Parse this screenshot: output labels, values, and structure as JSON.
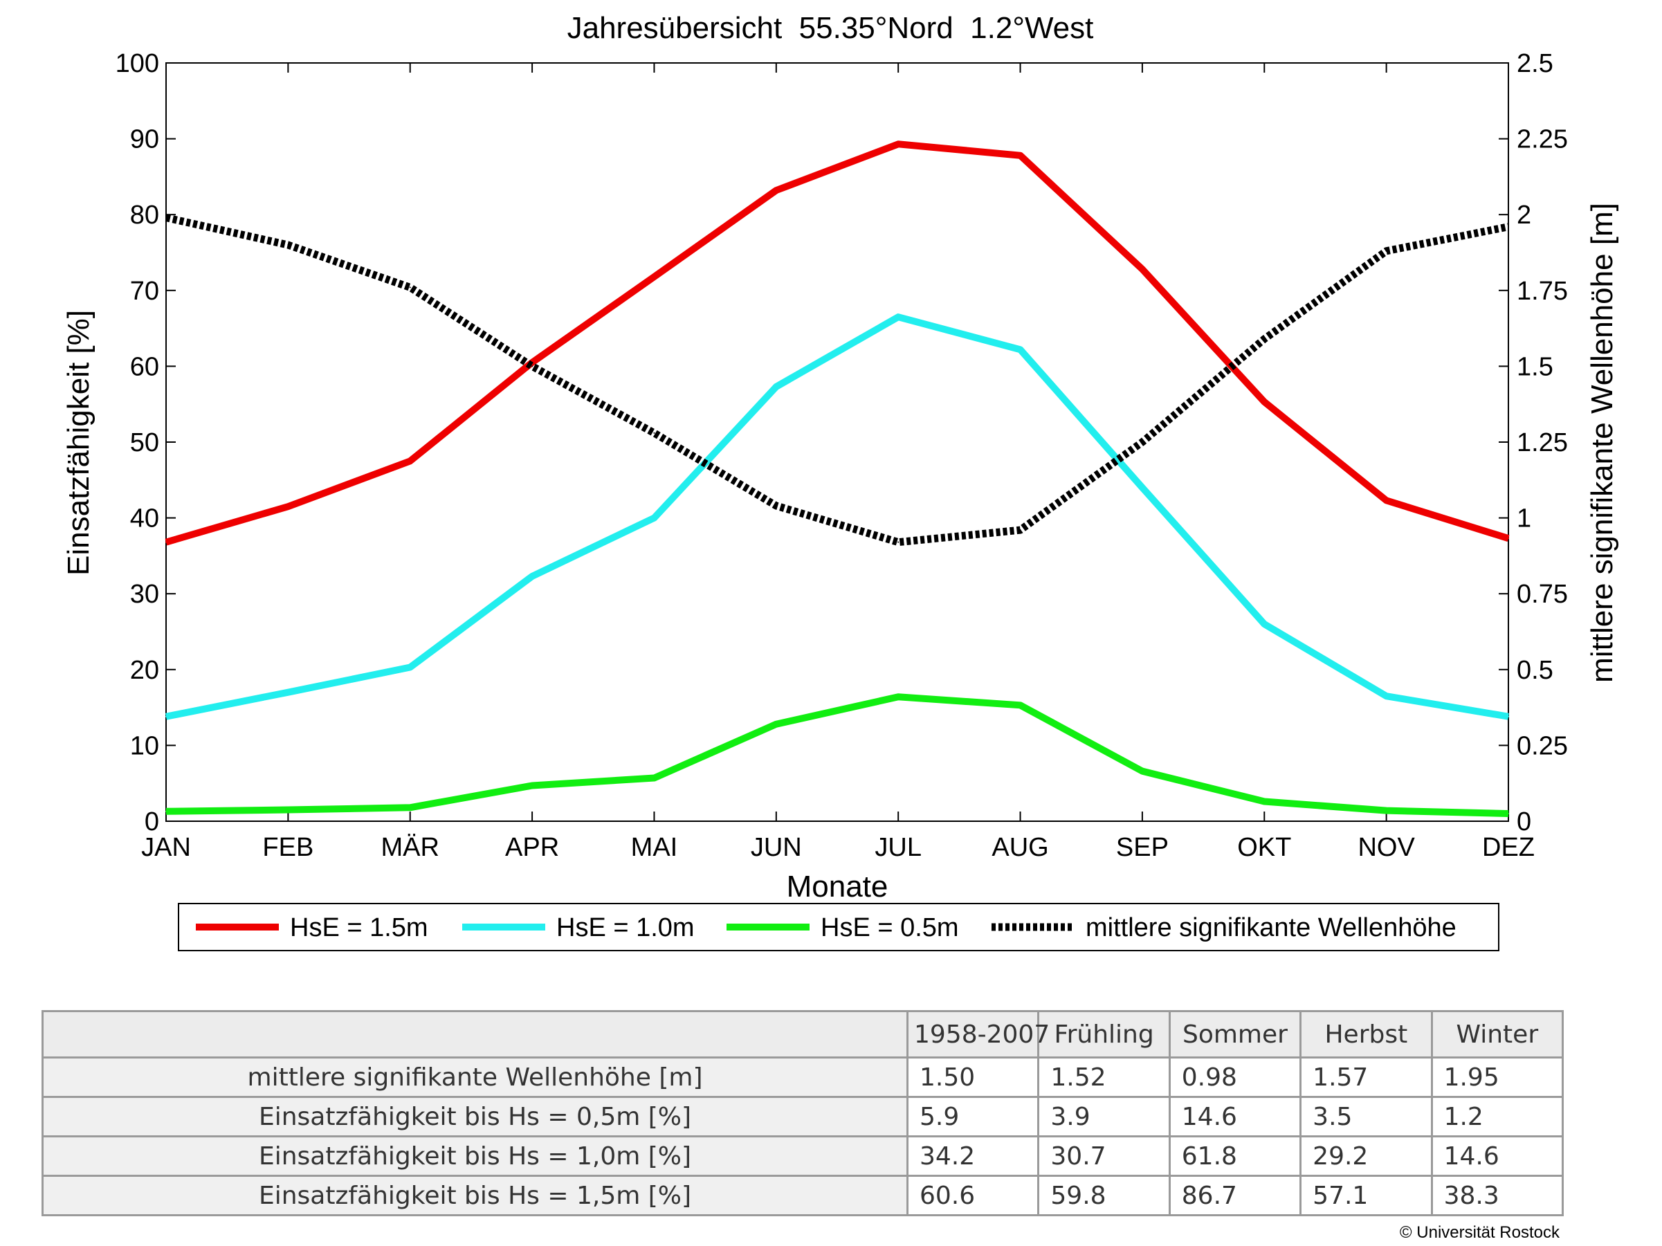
{
  "chart_data": {
    "type": "line",
    "title": "Jahresübersicht  55.35°Nord  1.2°West",
    "xlabel": "Monate",
    "ylabel_left": "Einsatzfähigkeit [%]",
    "ylabel_right": "mittlere signifikante Wellenhöhe [m]",
    "categories": [
      "JAN",
      "FEB",
      "MÄR",
      "APR",
      "MAI",
      "JUN",
      "JUL",
      "AUG",
      "SEP",
      "OKT",
      "NOV",
      "DEZ"
    ],
    "ylim_left": [
      0,
      100
    ],
    "yticks_left": [
      "0",
      "10",
      "20",
      "30",
      "40",
      "50",
      "60",
      "70",
      "80",
      "90",
      "100"
    ],
    "ylim_right": [
      0,
      2.5
    ],
    "yticks_right": [
      "0",
      "0.25",
      "0.5",
      "0.75",
      "1",
      "1.25",
      "1.5",
      "1.75",
      "2",
      "2.25",
      "2.5"
    ],
    "grid": false,
    "legend_position": "bottom",
    "series": [
      {
        "name": "HsE = 1.5m",
        "axis": "left",
        "color": "#ee0000",
        "style": "solid",
        "values": [
          36.8,
          41.5,
          47.5,
          60.5,
          71.8,
          83.2,
          89.3,
          87.8,
          72.8,
          55.3,
          42.3,
          37.3
        ]
      },
      {
        "name": "HsE = 1.0m",
        "axis": "left",
        "color": "#22eeee",
        "style": "solid",
        "values": [
          13.8,
          17.0,
          20.3,
          32.3,
          40.0,
          57.3,
          66.5,
          62.2,
          44.0,
          26.0,
          16.5,
          13.8
        ]
      },
      {
        "name": "HsE = 0.5m",
        "axis": "left",
        "color": "#11ee11",
        "style": "solid",
        "values": [
          1.3,
          1.5,
          1.8,
          4.7,
          5.7,
          12.8,
          16.4,
          15.3,
          6.6,
          2.6,
          1.4,
          1.0
        ]
      },
      {
        "name": "mittlere signifikante Wellenhöhe",
        "axis": "right",
        "color": "#000000",
        "style": "dotted",
        "values": [
          1.99,
          1.9,
          1.76,
          1.5,
          1.28,
          1.04,
          0.92,
          0.96,
          1.25,
          1.59,
          1.88,
          1.96
        ]
      }
    ]
  },
  "table": {
    "columns": [
      "1958-2007",
      "Frühling",
      "Sommer",
      "Herbst",
      "Winter"
    ],
    "rows": [
      {
        "label": "mittlere signifikante Wellenhöhe [m]",
        "values": [
          "1.50",
          "1.52",
          "0.98",
          "1.57",
          "1.95"
        ]
      },
      {
        "label": "Einsatzfähigkeit bis Hs = 0,5m [%]",
        "values": [
          "5.9",
          "3.9",
          "14.6",
          "3.5",
          "1.2"
        ]
      },
      {
        "label": "Einsatzfähigkeit bis Hs = 1,0m [%]",
        "values": [
          "34.2",
          "30.7",
          "61.8",
          "29.2",
          "14.6"
        ]
      },
      {
        "label": "Einsatzfähigkeit bis Hs = 1,5m [%]",
        "values": [
          "60.6",
          "59.8",
          "86.7",
          "57.1",
          "38.3"
        ]
      }
    ]
  },
  "copyright": "© Universität Rostock"
}
